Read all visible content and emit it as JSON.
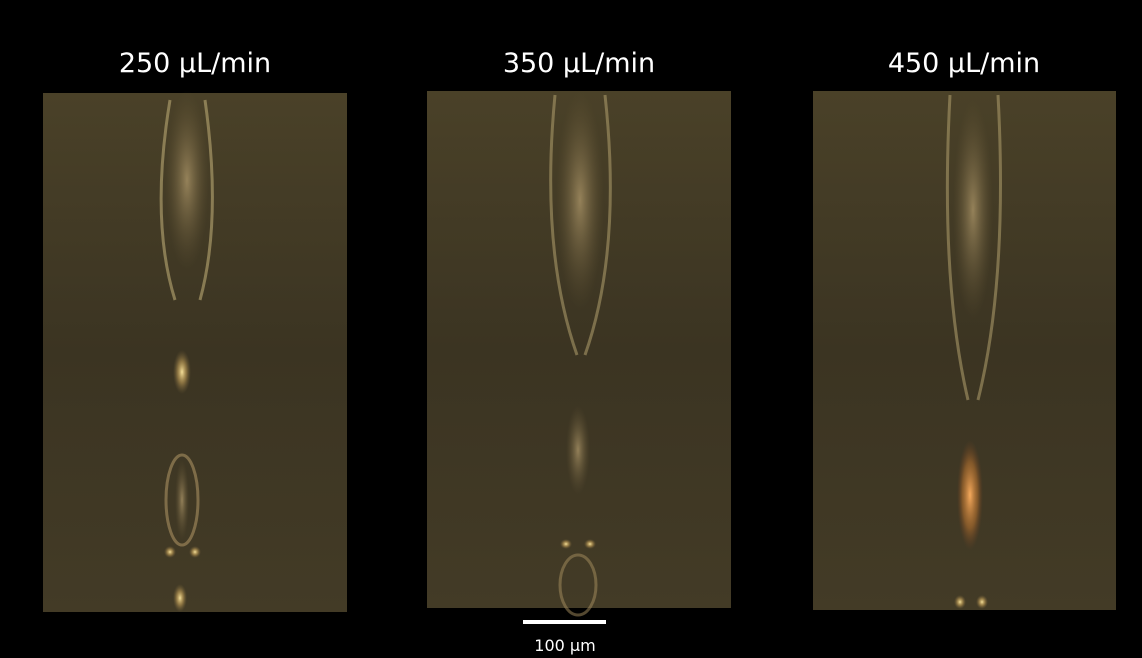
{
  "panels": [
    {
      "label": "250 μL/min"
    },
    {
      "label": "350 μL/min"
    },
    {
      "label": "450 μL/min"
    }
  ],
  "scale_bar": {
    "label": "100 μm"
  }
}
